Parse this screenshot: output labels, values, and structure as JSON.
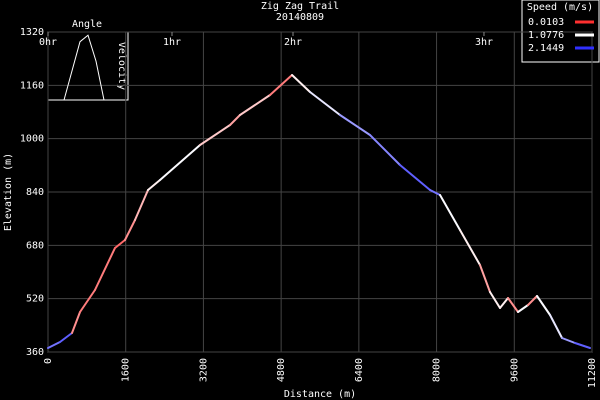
{
  "chart_data": {
    "type": "line",
    "title": "Zig Zag Trail",
    "subtitle": "20140809",
    "x_label": "Distance (m)",
    "y_label": "Elevation (m)",
    "x": [
      0,
      247,
      494,
      659,
      967,
      1379,
      1585,
      1791,
      2059,
      2306,
      3130,
      3748,
      3953,
      4571,
      5024,
      5394,
      6012,
      6629,
      7247,
      7865,
      8071,
      8482,
      8894,
      9100,
      9306,
      9471,
      9677,
      9883,
      10068,
      10336,
      10583,
      10850,
      11159
    ],
    "values": [
      372,
      390,
      417,
      480,
      546,
      672,
      696,
      756,
      846,
      876,
      981,
      1041,
      1071,
      1131,
      1191,
      1140,
      1071,
      1011,
      921,
      846,
      831,
      726,
      621,
      540,
      492,
      522,
      480,
      501,
      528,
      471,
      402,
      387,
      372
    ],
    "speed": [
      1.5,
      1.8,
      1.9,
      0.5,
      0.4,
      0.4,
      0.3,
      0.5,
      0.7,
      1.0,
      1.1,
      0.8,
      0.6,
      0.8,
      0.4,
      1.0,
      1.2,
      1.6,
      1.7,
      1.9,
      1.8,
      1.1,
      1.0,
      0.6,
      1.0,
      1.0,
      0.5,
      1.1,
      0.5,
      1.1,
      1.2,
      1.6,
      1.9
    ],
    "xlim": [
      0,
      11200
    ],
    "ylim": [
      360,
      1320
    ],
    "xticks": [
      0,
      1600,
      3200,
      4800,
      6400,
      8000,
      9600,
      11200
    ],
    "yticks": [
      360,
      520,
      680,
      840,
      1000,
      1160,
      1320
    ],
    "time_ticks": [
      {
        "value": 0,
        "label": "0hr"
      },
      {
        "value": 2553,
        "label": "1hr"
      },
      {
        "value": 5044,
        "label": "2hr"
      },
      {
        "value": 8976,
        "label": "3hr"
      }
    ],
    "grid": true,
    "legend_title": "Speed (m/s)",
    "colorbar": [
      {
        "value": 0.0103,
        "color": "#ff3030"
      },
      {
        "value": 1.0776,
        "color": "#ffffff"
      },
      {
        "value": 2.1449,
        "color": "#3030ff"
      }
    ],
    "inset": {
      "title": "Angle",
      "y_label": "Velocity",
      "x": [
        0,
        1,
        2,
        3,
        4,
        5
      ],
      "values": [
        0,
        0.45,
        0.9,
        1,
        0.6,
        0
      ],
      "xlim": [
        -2,
        8
      ],
      "ylim": [
        0,
        1.05
      ]
    }
  }
}
